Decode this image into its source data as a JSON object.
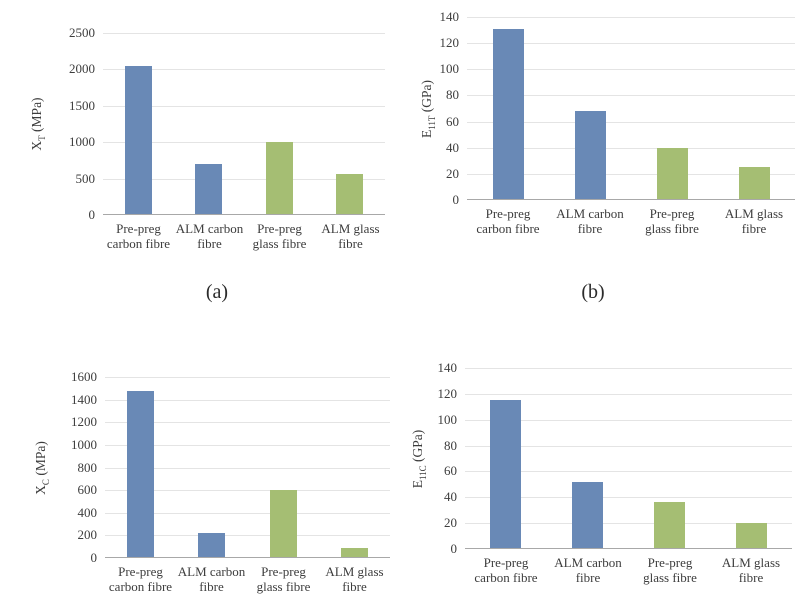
{
  "figure": {
    "background": "#ffffff",
    "palette": {
      "carbon_fibre_bar": "#6989b6",
      "glass_fibre_bar": "#a5be73",
      "gridline": "#e4e4e4",
      "axis_line": "#a8a8a8",
      "text": "#3d3d3d"
    }
  },
  "chart_data": [
    {
      "type": "bar",
      "caption": "(a)",
      "ylabel_base": "X",
      "ylabel_sub": "T",
      "ylabel_unit": " (MPa)",
      "ylim": [
        0,
        2500
      ],
      "ytick_step": 500,
      "grid": true,
      "legend": false,
      "categories": [
        "Pre-preg\ncarbon fibre",
        "ALM carbon\nfibre",
        "Pre-preg\nglass fibre",
        "ALM glass\nfibre"
      ],
      "values": [
        2050,
        700,
        1000,
        570
      ],
      "bar_colors": [
        "#6989b6",
        "#6989b6",
        "#a5be73",
        "#a5be73"
      ]
    },
    {
      "type": "bar",
      "caption": "(b)",
      "ylabel_base": "E",
      "ylabel_sub": "11T",
      "ylabel_unit": " (GPa)",
      "ylim": [
        0,
        140
      ],
      "ytick_step": 20,
      "grid": true,
      "legend": false,
      "categories": [
        "Pre-preg\ncarbon fibre",
        "ALM carbon\nfibre",
        "Pre-preg\nglass fibre",
        "ALM glass\nfibre"
      ],
      "values": [
        131,
        68,
        40,
        25
      ],
      "bar_colors": [
        "#6989b6",
        "#6989b6",
        "#a5be73",
        "#a5be73"
      ]
    },
    {
      "type": "bar",
      "caption": "",
      "ylabel_base": "X",
      "ylabel_sub": "C",
      "ylabel_unit": " (MPa)",
      "ylim": [
        0,
        1600
      ],
      "ytick_step": 200,
      "grid": true,
      "legend": false,
      "categories": [
        "Pre-preg\ncarbon fibre",
        "ALM carbon\nfibre",
        "Pre-preg\nglass fibre",
        "ALM glass\nfibre"
      ],
      "values": [
        1480,
        220,
        600,
        90
      ],
      "bar_colors": [
        "#6989b6",
        "#6989b6",
        "#a5be73",
        "#a5be73"
      ]
    },
    {
      "type": "bar",
      "caption": "",
      "ylabel_base": "E",
      "ylabel_sub": "11C",
      "ylabel_unit": " (GPa)",
      "ylim": [
        0,
        140
      ],
      "ytick_step": 20,
      "grid": true,
      "legend": false,
      "categories": [
        "Pre-preg\ncarbon fibre",
        "ALM carbon\nfibre",
        "Pre-preg\nglass fibre",
        "ALM glass\nfibre"
      ],
      "values": [
        115,
        52,
        36,
        20
      ],
      "bar_colors": [
        "#6989b6",
        "#6989b6",
        "#a5be73",
        "#a5be73"
      ]
    }
  ]
}
